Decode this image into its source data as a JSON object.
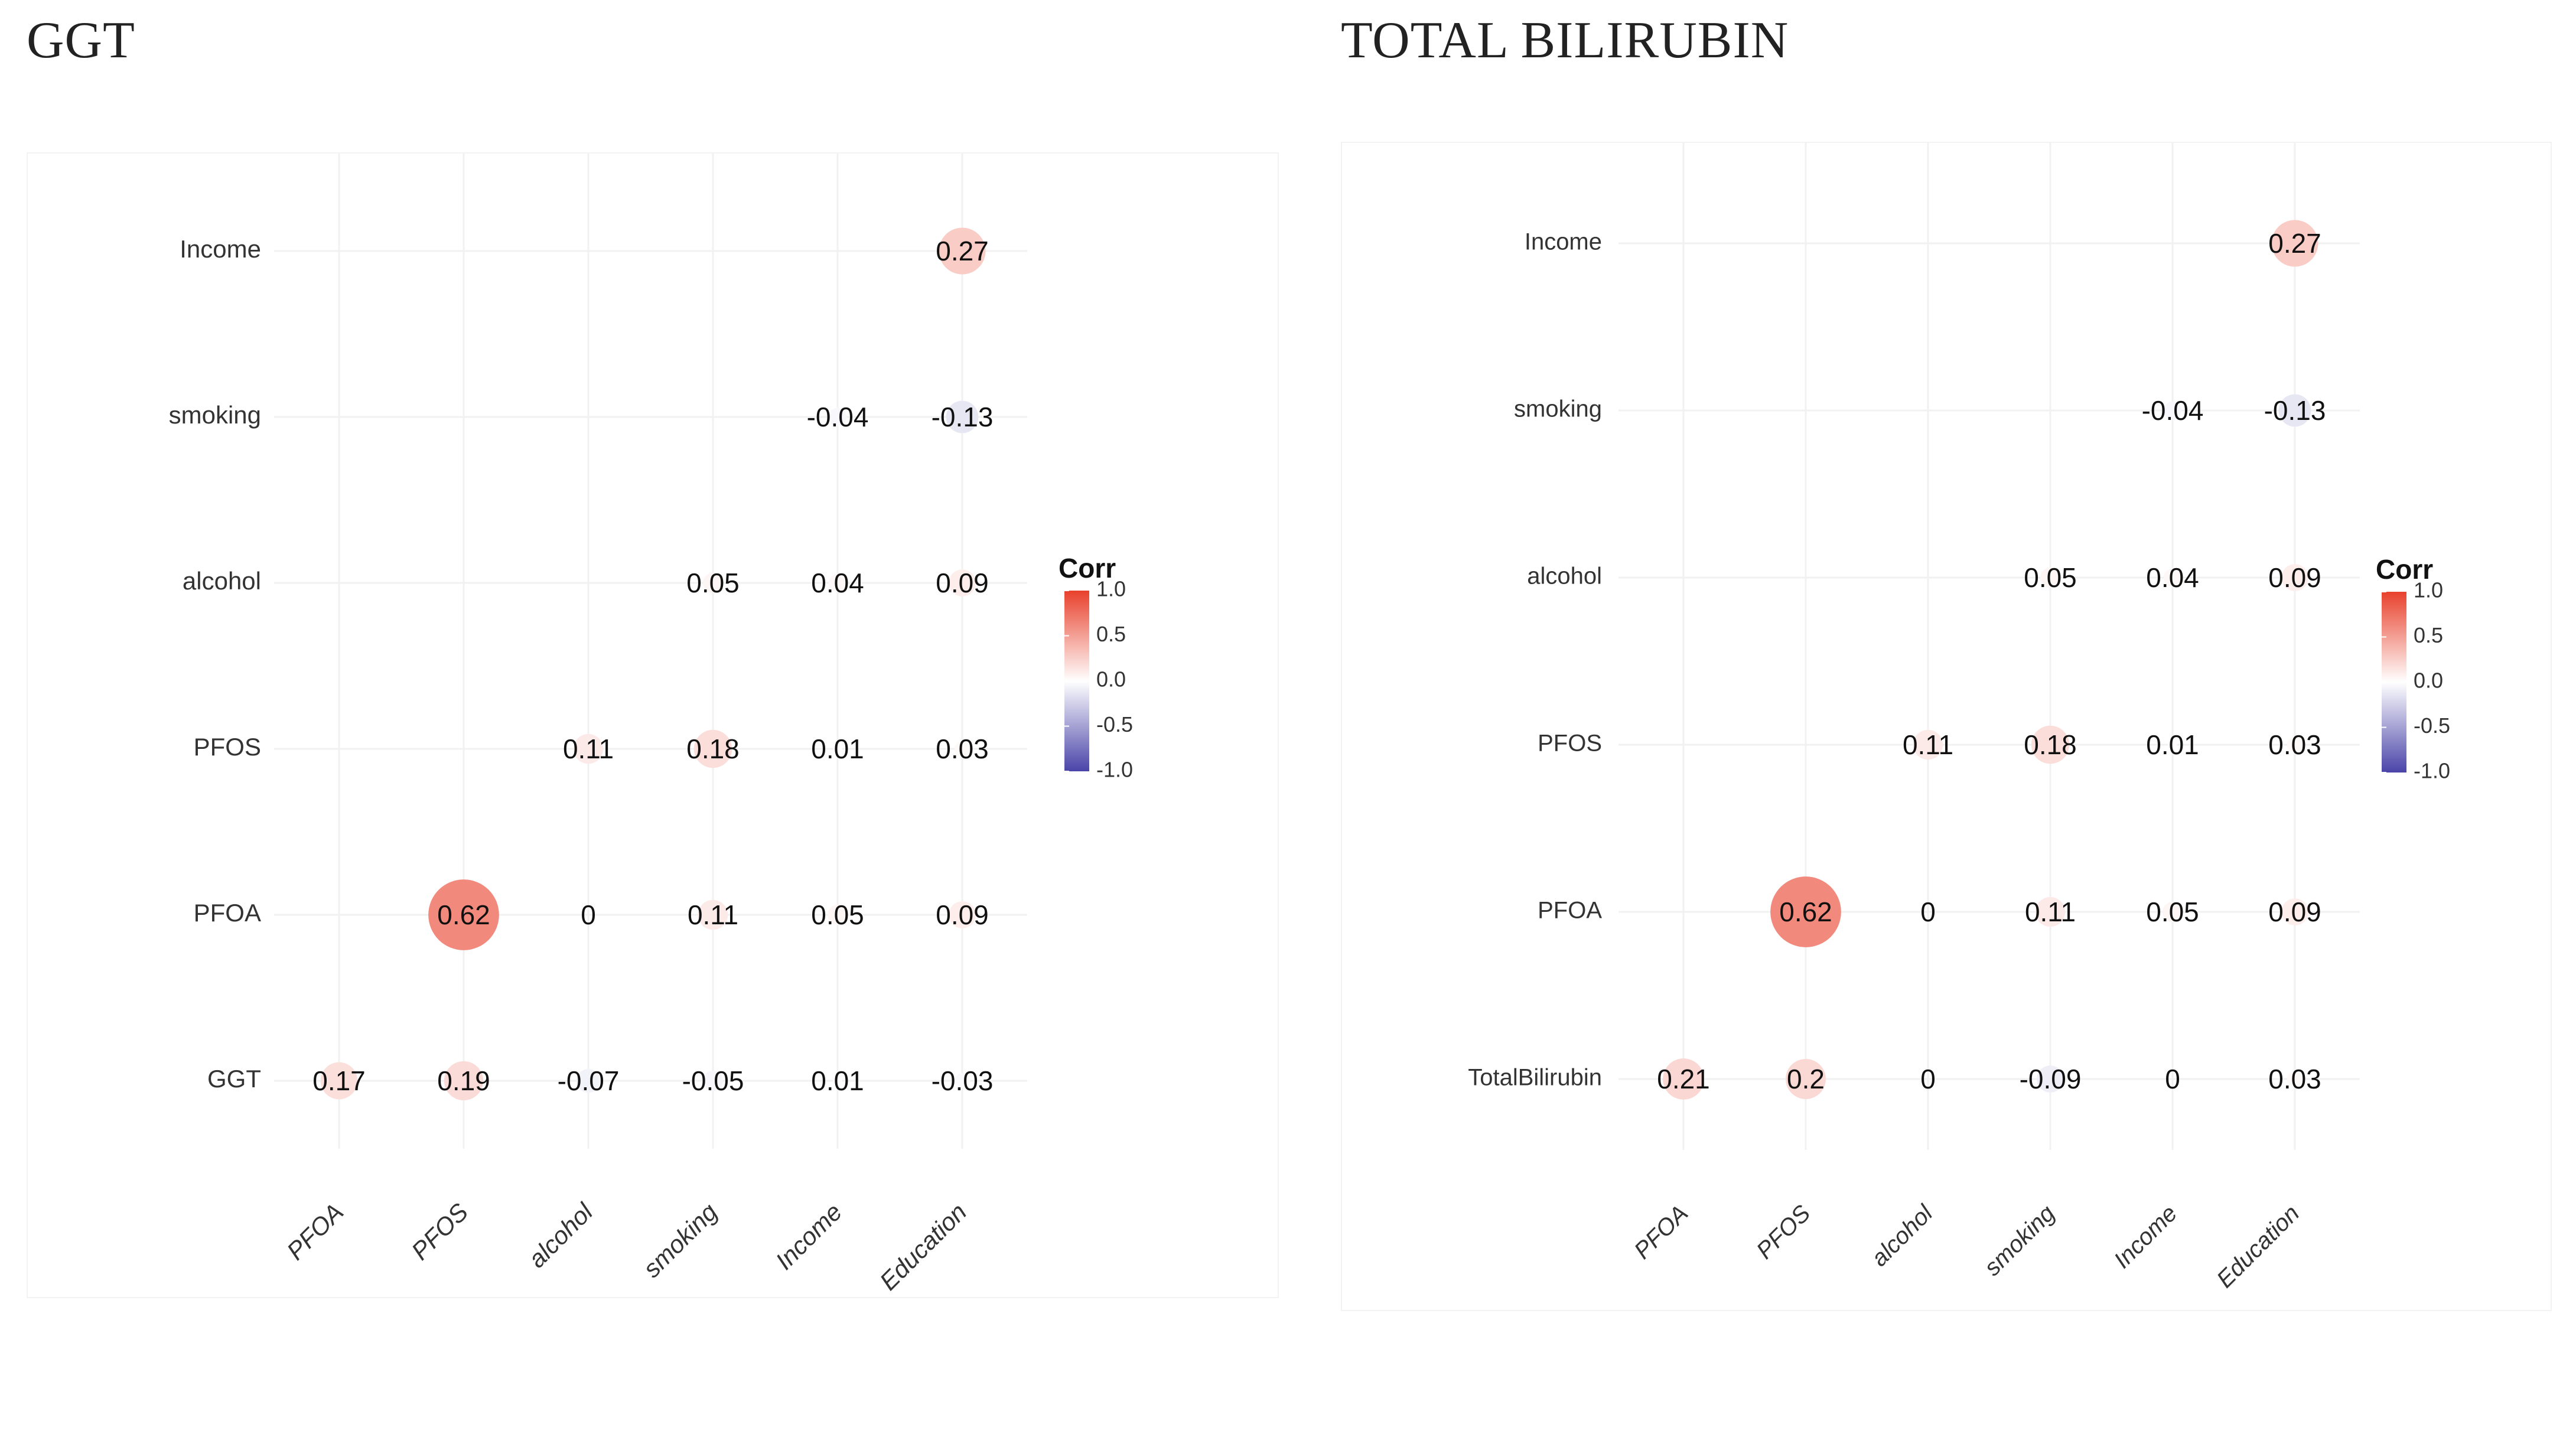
{
  "chart_data": [
    {
      "type": "heatmap",
      "title": "GGT",
      "y_categories": [
        "Income",
        "smoking",
        "alcohol",
        "PFOS",
        "PFOA",
        "GGT"
      ],
      "x_categories": [
        "PFOA",
        "PFOS",
        "alcohol",
        "smoking",
        "Income",
        "Education"
      ],
      "cells": [
        {
          "row": "Income",
          "col": "Education",
          "value": 0.27
        },
        {
          "row": "smoking",
          "col": "Income",
          "value": -0.04
        },
        {
          "row": "smoking",
          "col": "Education",
          "value": -0.13
        },
        {
          "row": "alcohol",
          "col": "smoking",
          "value": 0.05
        },
        {
          "row": "alcohol",
          "col": "Income",
          "value": 0.04
        },
        {
          "row": "alcohol",
          "col": "Education",
          "value": 0.09
        },
        {
          "row": "PFOS",
          "col": "alcohol",
          "value": 0.11
        },
        {
          "row": "PFOS",
          "col": "smoking",
          "value": 0.18
        },
        {
          "row": "PFOS",
          "col": "Income",
          "value": 0.01
        },
        {
          "row": "PFOS",
          "col": "Education",
          "value": 0.03
        },
        {
          "row": "PFOA",
          "col": "PFOS",
          "value": 0.62
        },
        {
          "row": "PFOA",
          "col": "alcohol",
          "value": 0
        },
        {
          "row": "PFOA",
          "col": "smoking",
          "value": 0.11
        },
        {
          "row": "PFOA",
          "col": "Income",
          "value": 0.05
        },
        {
          "row": "PFOA",
          "col": "Education",
          "value": 0.09
        },
        {
          "row": "GGT",
          "col": "PFOA",
          "value": 0.17
        },
        {
          "row": "GGT",
          "col": "PFOS",
          "value": 0.19
        },
        {
          "row": "GGT",
          "col": "alcohol",
          "value": -0.07
        },
        {
          "row": "GGT",
          "col": "smoking",
          "value": -0.05
        },
        {
          "row": "GGT",
          "col": "Income",
          "value": 0.01
        },
        {
          "row": "GGT",
          "col": "Education",
          "value": -0.03
        }
      ],
      "legend": {
        "title": "Corr",
        "ticks": [
          "1.0",
          "0.5",
          "0.0",
          "-0.5",
          "-1.0"
        ],
        "range": [
          -1,
          1
        ],
        "placement": "right"
      },
      "colors": {
        "high": "#e8412c",
        "mid": "#ffffff",
        "low": "#4a44a8"
      }
    },
    {
      "type": "heatmap",
      "title": "TOTAL BILIRUBIN",
      "y_categories": [
        "Income",
        "smoking",
        "alcohol",
        "PFOS",
        "PFOA",
        "TotalBilirubin"
      ],
      "x_categories": [
        "PFOA",
        "PFOS",
        "alcohol",
        "smoking",
        "Income",
        "Education"
      ],
      "cells": [
        {
          "row": "Income",
          "col": "Education",
          "value": 0.27
        },
        {
          "row": "smoking",
          "col": "Income",
          "value": -0.04
        },
        {
          "row": "smoking",
          "col": "Education",
          "value": -0.13
        },
        {
          "row": "alcohol",
          "col": "smoking",
          "value": 0.05
        },
        {
          "row": "alcohol",
          "col": "Income",
          "value": 0.04
        },
        {
          "row": "alcohol",
          "col": "Education",
          "value": 0.09
        },
        {
          "row": "PFOS",
          "col": "alcohol",
          "value": 0.11
        },
        {
          "row": "PFOS",
          "col": "smoking",
          "value": 0.18
        },
        {
          "row": "PFOS",
          "col": "Income",
          "value": 0.01
        },
        {
          "row": "PFOS",
          "col": "Education",
          "value": 0.03
        },
        {
          "row": "PFOA",
          "col": "PFOS",
          "value": 0.62
        },
        {
          "row": "PFOA",
          "col": "alcohol",
          "value": 0
        },
        {
          "row": "PFOA",
          "col": "smoking",
          "value": 0.11
        },
        {
          "row": "PFOA",
          "col": "Income",
          "value": 0.05
        },
        {
          "row": "PFOA",
          "col": "Education",
          "value": 0.09
        },
        {
          "row": "TotalBilirubin",
          "col": "PFOA",
          "value": 0.21
        },
        {
          "row": "TotalBilirubin",
          "col": "PFOS",
          "value": 0.2
        },
        {
          "row": "TotalBilirubin",
          "col": "alcohol",
          "value": 0
        },
        {
          "row": "TotalBilirubin",
          "col": "smoking",
          "value": -0.09
        },
        {
          "row": "TotalBilirubin",
          "col": "Income",
          "value": 0
        },
        {
          "row": "TotalBilirubin",
          "col": "Education",
          "value": 0.03
        }
      ],
      "legend": {
        "title": "Corr",
        "ticks": [
          "1.0",
          "0.5",
          "0.0",
          "-0.5",
          "-1.0"
        ],
        "range": [
          -1,
          1
        ],
        "placement": "right"
      },
      "colors": {
        "high": "#e8412c",
        "mid": "#ffffff",
        "low": "#4a44a8"
      }
    }
  ]
}
